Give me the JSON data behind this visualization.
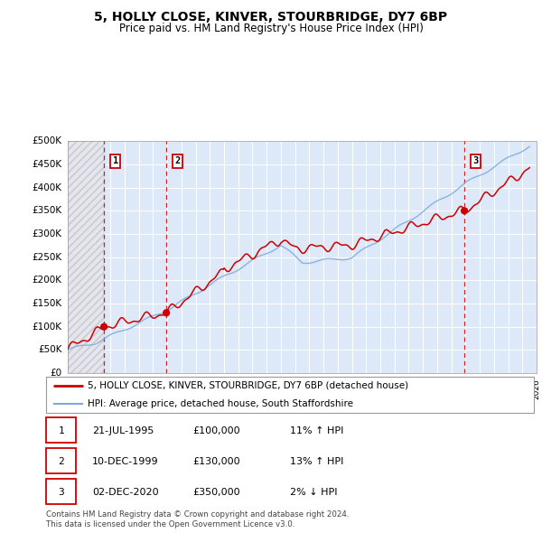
{
  "title": "5, HOLLY CLOSE, KINVER, STOURBRIDGE, DY7 6BP",
  "subtitle": "Price paid vs. HM Land Registry's House Price Index (HPI)",
  "xlim": [
    1993,
    2026
  ],
  "ylim": [
    0,
    500000
  ],
  "yticks": [
    0,
    50000,
    100000,
    150000,
    200000,
    250000,
    300000,
    350000,
    400000,
    450000,
    500000
  ],
  "ytick_labels": [
    "£0",
    "£50K",
    "£100K",
    "£150K",
    "£200K",
    "£250K",
    "£300K",
    "£350K",
    "£400K",
    "£450K",
    "£500K"
  ],
  "sale_dates": [
    1995.55,
    1999.94,
    2020.92
  ],
  "sale_prices": [
    100000,
    130000,
    350000
  ],
  "sale_labels": [
    "1",
    "2",
    "3"
  ],
  "hpi_color": "#7aaadd",
  "price_color": "#cc0000",
  "dashed_color": "#cc0000",
  "legend_entries": [
    "5, HOLLY CLOSE, KINVER, STOURBRIDGE, DY7 6BP (detached house)",
    "HPI: Average price, detached house, South Staffordshire"
  ],
  "table_rows": [
    [
      "1",
      "21-JUL-1995",
      "£100,000",
      "11% ↑ HPI"
    ],
    [
      "2",
      "10-DEC-1999",
      "£130,000",
      "13% ↑ HPI"
    ],
    [
      "3",
      "02-DEC-2020",
      "£350,000",
      "2% ↓ HPI"
    ]
  ],
  "footer": "Contains HM Land Registry data © Crown copyright and database right 2024.\nThis data is licensed under the Open Government Licence v3.0.",
  "plot_bg": "#dde8f8"
}
